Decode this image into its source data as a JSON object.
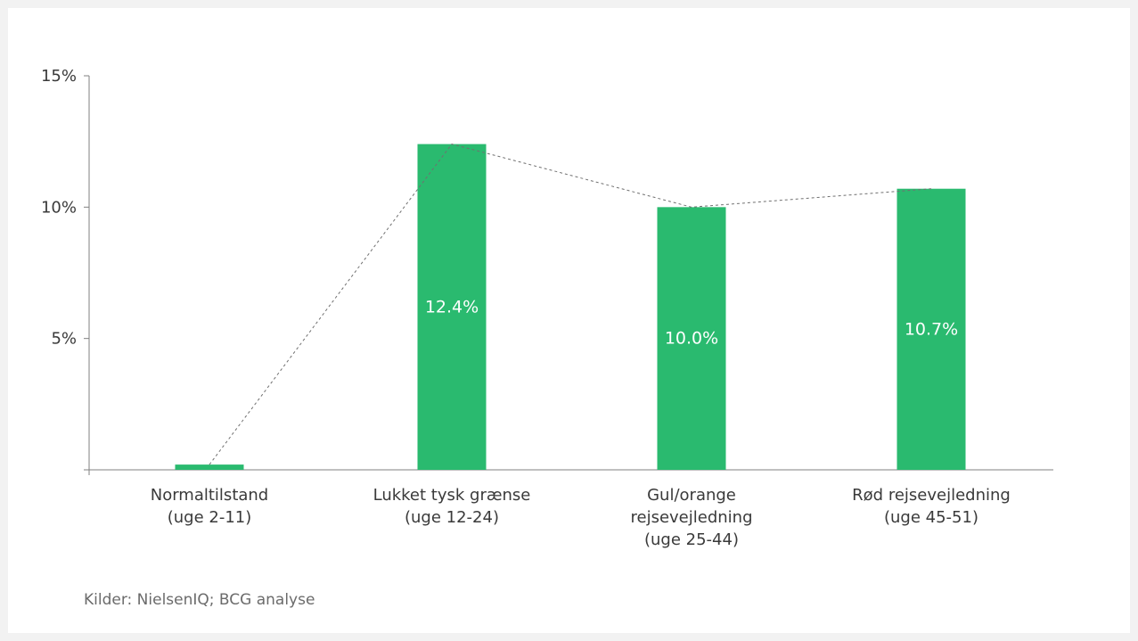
{
  "chart_data": {
    "type": "bar",
    "categories": [
      "Normaltilstand\n(uge 2-11)",
      "Lukket tysk grænse\n(uge 12-24)",
      "Gul/orange\nrejsevejledning\n(uge 25-44)",
      "Rød rejsevejledning\n(uge 45-51)"
    ],
    "values": [
      0.2,
      12.4,
      10.0,
      10.7
    ],
    "data_labels": [
      "",
      "12.4%",
      "10.0%",
      "10.7%"
    ],
    "ylim": [
      0,
      15
    ],
    "yticks": [
      {
        "value": 5,
        "label": "5%"
      },
      {
        "value": 10,
        "label": "10%"
      },
      {
        "value": 15,
        "label": "15%"
      }
    ],
    "connector_line": "dashed",
    "grid": false,
    "title": "",
    "xlabel": "",
    "ylabel": ""
  },
  "colors": {
    "bar": "#2aba6f",
    "axis": "#808080",
    "connector": "#707070",
    "data_label": "#ffffff",
    "tick_label": "#3a3a3a"
  },
  "source": "Kilder: NielsenIQ; BCG analyse"
}
